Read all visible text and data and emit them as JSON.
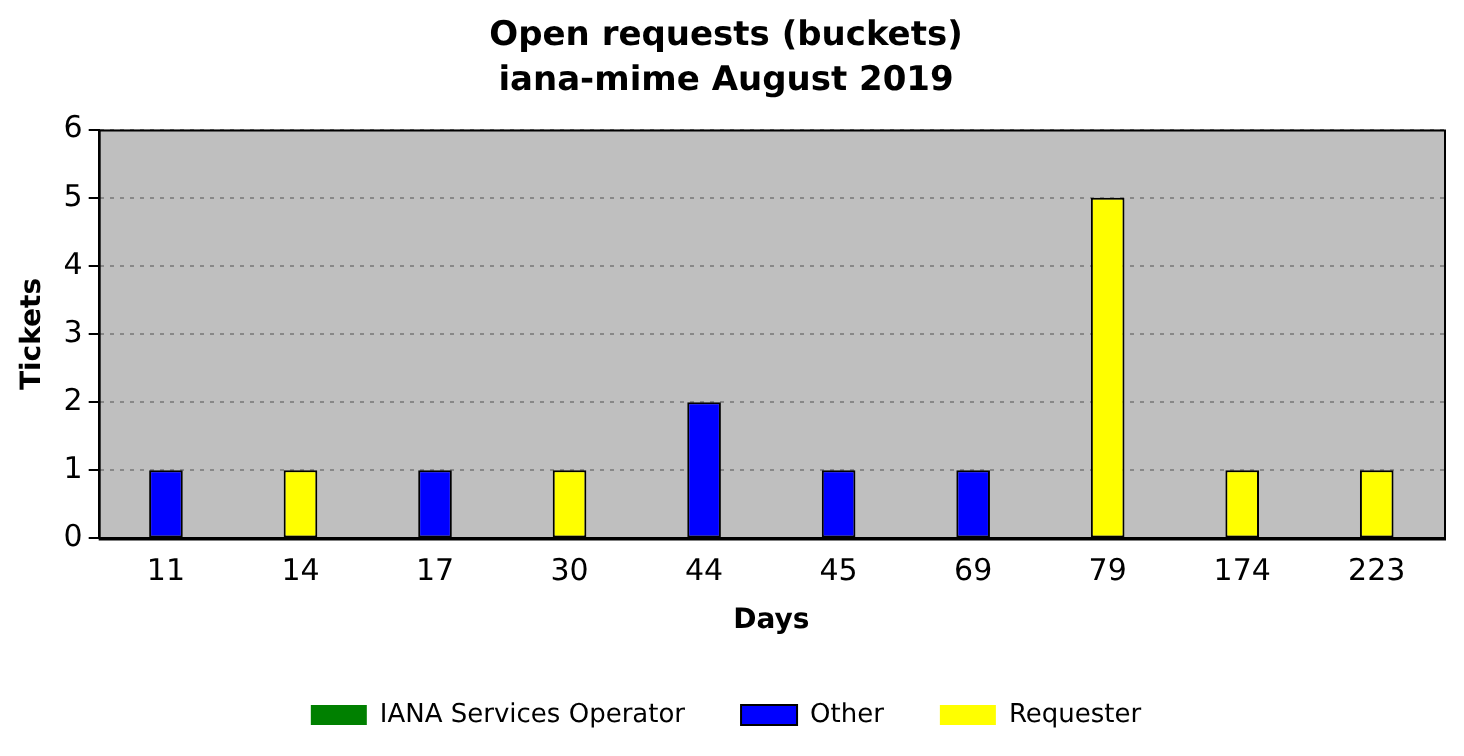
{
  "chart_data": {
    "type": "bar",
    "title": "Open requests (buckets)",
    "subtitle": "iana-mime August 2019",
    "xlabel": "Days",
    "ylabel": "Tickets",
    "categories": [
      "11",
      "14",
      "17",
      "30",
      "44",
      "45",
      "69",
      "79",
      "174",
      "223"
    ],
    "series": [
      {
        "name": "IANA Services Operator",
        "color": "#008000",
        "values": [
          0,
          0,
          0,
          0,
          0,
          0,
          0,
          0,
          0,
          0
        ]
      },
      {
        "name": "Other",
        "color": "#0000ff",
        "values": [
          1,
          0,
          1,
          0,
          2,
          1,
          1,
          0,
          0,
          0
        ]
      },
      {
        "name": "Requester",
        "color": "#ffff00",
        "values": [
          0,
          1,
          0,
          1,
          0,
          0,
          0,
          5,
          1,
          1
        ]
      }
    ],
    "stacked": true,
    "ylim": [
      0,
      6
    ],
    "yticks": [
      0,
      1,
      2,
      3,
      4,
      5,
      6
    ],
    "grid": "y",
    "legend": "bottom"
  }
}
